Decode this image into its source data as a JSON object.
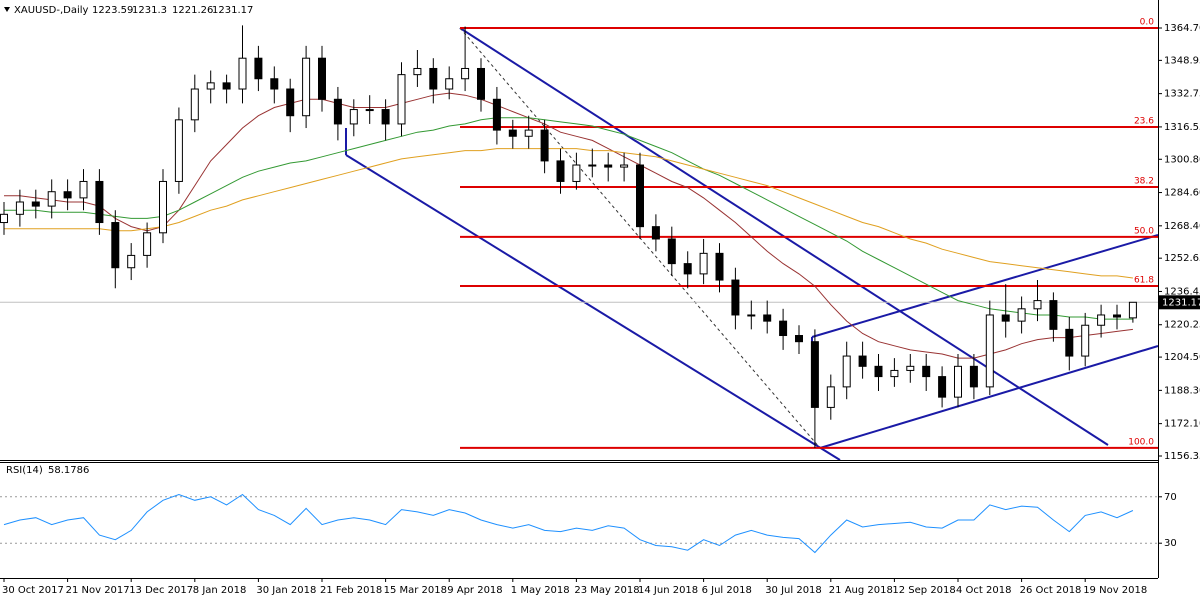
{
  "chart_data": [
    {
      "type": "candlestick",
      "title": "XAUUSD-,Daily",
      "categories": [
        "30 Oct 2017",
        null,
        null,
        null,
        "21 Nov 2017",
        null,
        null,
        null,
        "13 Dec 2017",
        null,
        null,
        null,
        "8 Jan 2018",
        null,
        null,
        null,
        "30 Jan 2018",
        null,
        null,
        null,
        "21 Feb 2018",
        null,
        null,
        null,
        "15 Mar 2018",
        null,
        null,
        null,
        "9 Apr 2018",
        null,
        null,
        null,
        "1 May 2018",
        null,
        null,
        null,
        "23 May 2018",
        null,
        null,
        null,
        "14 Jun 2018",
        null,
        null,
        null,
        "6 Jul 2018",
        null,
        null,
        null,
        "30 Jul 2018",
        null,
        null,
        null,
        "21 Aug 2018",
        null,
        null,
        null,
        "12 Sep 2018",
        null,
        null,
        null,
        "4 Oct 2018",
        null,
        null,
        null,
        "26 Oct 2018",
        null,
        null,
        null,
        "19 Nov 2018",
        null,
        null,
        null
      ],
      "open": [
        1270,
        1274,
        1280,
        1278,
        1285,
        1282,
        1290,
        1270,
        1248,
        1254,
        1265,
        1290,
        1320,
        1335,
        1338,
        1335,
        1350,
        1340,
        1335,
        1322,
        1350,
        1330,
        1318,
        1325,
        1325,
        1318,
        1342,
        1345,
        1335,
        1340,
        1345,
        1330,
        1315,
        1312,
        1315,
        1300,
        1290,
        1298,
        1298,
        1297,
        1298,
        1268,
        1262,
        1250,
        1245,
        1255,
        1242,
        1225,
        1225,
        1222,
        1215,
        1212,
        1180,
        1190,
        1205,
        1200,
        1195,
        1198,
        1200,
        1195,
        1185,
        1200,
        1190,
        1225,
        1222,
        1228,
        1232,
        1218,
        1205,
        1220,
        1225,
        1223.59
      ],
      "high": [
        1280,
        1286,
        1286,
        1291,
        1291,
        1296,
        1296,
        1276,
        1260,
        1270,
        1296,
        1326,
        1342,
        1344,
        1342,
        1366,
        1356,
        1346,
        1340,
        1356,
        1356,
        1336,
        1330,
        1332,
        1330,
        1348,
        1354,
        1350,
        1346,
        1365.4,
        1350,
        1336,
        1320,
        1322,
        1320,
        1306,
        1304,
        1306,
        1304,
        1304,
        1304,
        1274,
        1268,
        1256,
        1262,
        1260,
        1248,
        1232,
        1232,
        1228,
        1220,
        1218,
        1196,
        1212,
        1212,
        1206,
        1204,
        1206,
        1206,
        1200,
        1206,
        1206,
        1232,
        1240,
        1234,
        1242,
        1236,
        1224,
        1226,
        1230,
        1230,
        1231.3
      ],
      "low": [
        1264,
        1268,
        1272,
        1272,
        1276,
        1276,
        1264,
        1238,
        1242,
        1248,
        1260,
        1284,
        1314,
        1328,
        1328,
        1328,
        1334,
        1328,
        1314,
        1316,
        1324,
        1310,
        1312,
        1318,
        1310,
        1312,
        1336,
        1328,
        1330,
        1334,
        1324,
        1308,
        1306,
        1306,
        1294,
        1284,
        1286,
        1292,
        1290,
        1290,
        1262,
        1256,
        1244,
        1238,
        1240,
        1236,
        1218,
        1218,
        1216,
        1208,
        1206,
        1160.3,
        1174,
        1184,
        1194,
        1188,
        1190,
        1192,
        1188,
        1180,
        1180,
        1184,
        1186,
        1214,
        1216,
        1222,
        1212,
        1198,
        1200,
        1214,
        1218,
        1221.26
      ],
      "close": [
        1274,
        1280,
        1278,
        1285,
        1282,
        1290,
        1270,
        1248,
        1254,
        1265,
        1290,
        1320,
        1335,
        1338,
        1335,
        1350,
        1340,
        1335,
        1322,
        1350,
        1330,
        1318,
        1325,
        1325,
        1318,
        1342,
        1345,
        1335,
        1340,
        1345,
        1330,
        1315,
        1312,
        1315,
        1300,
        1290,
        1298,
        1298,
        1297,
        1298,
        1268,
        1262,
        1250,
        1245,
        1255,
        1242,
        1225,
        1225,
        1222,
        1215,
        1212,
        1180,
        1190,
        1205,
        1200,
        1195,
        1198,
        1200,
        1195,
        1185,
        1200,
        1190,
        1225,
        1222,
        1228,
        1232,
        1218,
        1205,
        1220,
        1225,
        1224,
        1231.17
      ],
      "up_color": "#ffffff",
      "down_color": "#000000",
      "series": [
        {
          "color": "#993333",
          "values": [
            1283,
            1283,
            1282,
            1281,
            1280,
            1280,
            1278,
            1272,
            1268,
            1266,
            1268,
            1276,
            1288,
            1300,
            1308,
            1316,
            1322,
            1326,
            1328,
            1330,
            1330,
            1328,
            1326,
            1326,
            1326,
            1328,
            1330,
            1332,
            1333,
            1332,
            1330,
            1327,
            1324,
            1321,
            1318,
            1314,
            1312,
            1310,
            1306,
            1302,
            1298,
            1294,
            1290,
            1287,
            1282,
            1276,
            1270,
            1263,
            1256,
            1250,
            1245,
            1239,
            1230,
            1222,
            1216,
            1212,
            1210,
            1208,
            1207,
            1206,
            1204,
            1204,
            1206,
            1208,
            1211,
            1213,
            1214,
            1214,
            1215,
            1216,
            1217,
            1218
          ]
        },
        {
          "color": "#339933",
          "values": [
            1276,
            1276,
            1276,
            1275,
            1275,
            1275,
            1274,
            1273,
            1272,
            1272,
            1273,
            1276,
            1280,
            1284,
            1288,
            1292,
            1295,
            1297,
            1299,
            1300,
            1302,
            1304,
            1306,
            1308,
            1310,
            1312,
            1314,
            1315,
            1317,
            1318,
            1320,
            1321,
            1321,
            1321,
            1320,
            1319,
            1318,
            1317,
            1315,
            1313,
            1310,
            1307,
            1304,
            1300,
            1296,
            1293,
            1289,
            1285,
            1281,
            1277,
            1273,
            1269,
            1265,
            1261,
            1256,
            1252,
            1248,
            1244,
            1240,
            1236,
            1232,
            1230,
            1228,
            1227,
            1226,
            1225,
            1225,
            1224,
            1224,
            1223,
            1223,
            1223
          ]
        },
        {
          "color": "#e0a020",
          "values": [
            1267,
            1267,
            1267,
            1267,
            1267,
            1267,
            1267,
            1266,
            1266,
            1267,
            1268,
            1270,
            1273,
            1276,
            1278,
            1281,
            1283,
            1285,
            1287,
            1289,
            1291,
            1293,
            1295,
            1297,
            1299,
            1301,
            1302,
            1303,
            1304,
            1305,
            1305,
            1306,
            1306,
            1306,
            1306,
            1306,
            1306,
            1305,
            1305,
            1304,
            1303,
            1302,
            1300,
            1298,
            1296,
            1294,
            1292,
            1290,
            1288,
            1285,
            1282,
            1279,
            1276,
            1273,
            1270,
            1268,
            1265,
            1262,
            1260,
            1257,
            1255,
            1253,
            1251,
            1250,
            1249,
            1248,
            1247,
            1246,
            1245,
            1244,
            1244,
            1243
          ]
        }
      ],
      "ylim": [
        1154.4,
        1377.36
      ],
      "yticks": [
        {
          "value": 1364.7,
          "label": "1364.70"
        },
        {
          "value": 1348.95,
          "label": "1348.95"
        },
        {
          "value": 1332.75,
          "label": "1332.75"
        },
        {
          "value": 1316.55,
          "label": "1316.55"
        },
        {
          "value": 1300.8,
          "label": "1300.80"
        },
        {
          "value": 1284.6,
          "label": "1284.60"
        },
        {
          "value": 1268.4,
          "label": "1268.40"
        },
        {
          "value": 1252.65,
          "label": "1252.65"
        },
        {
          "value": 1236.45,
          "label": "1236.45"
        },
        {
          "value": 1220.25,
          "label": "1220.25"
        },
        {
          "value": 1204.5,
          "label": "1204.50"
        },
        {
          "value": 1188.3,
          "label": "1188.30"
        },
        {
          "value": 1172.1,
          "label": "1172.10"
        },
        {
          "value": 1156.35,
          "label": "1156.35"
        }
      ],
      "fib_color": "#dd0000",
      "fib_levels": [
        {
          "label": "0.0",
          "value": 1364.7
        },
        {
          "label": "23.6",
          "value": 1316.5
        },
        {
          "label": "38.2",
          "value": 1287.3
        },
        {
          "label": "50.0",
          "value": 1263.0
        },
        {
          "label": "61.8",
          "value": 1239.1
        },
        {
          "label": "100.0",
          "value": 1160.3
        }
      ]
    },
    {
      "type": "line",
      "title": "RSI(14)",
      "color": "#1e90ff",
      "values": [
        46,
        50,
        52,
        46,
        50,
        52,
        37,
        33,
        41,
        57,
        67,
        72,
        67,
        70,
        63,
        72,
        59,
        54,
        46,
        60,
        46,
        50,
        52,
        50,
        46,
        59,
        57,
        54,
        59,
        56,
        50,
        46,
        43,
        46,
        41,
        40,
        43,
        41,
        45,
        43,
        33,
        28,
        27,
        24,
        33,
        28,
        37,
        41,
        37,
        35,
        34,
        22,
        37,
        50,
        44,
        46,
        47,
        48,
        44,
        43,
        50,
        50,
        63,
        59,
        62,
        61,
        50,
        40,
        54,
        57,
        52,
        58.1786
      ],
      "ylim": [
        0,
        100
      ],
      "yticks": [
        30,
        70
      ]
    }
  ]
}
